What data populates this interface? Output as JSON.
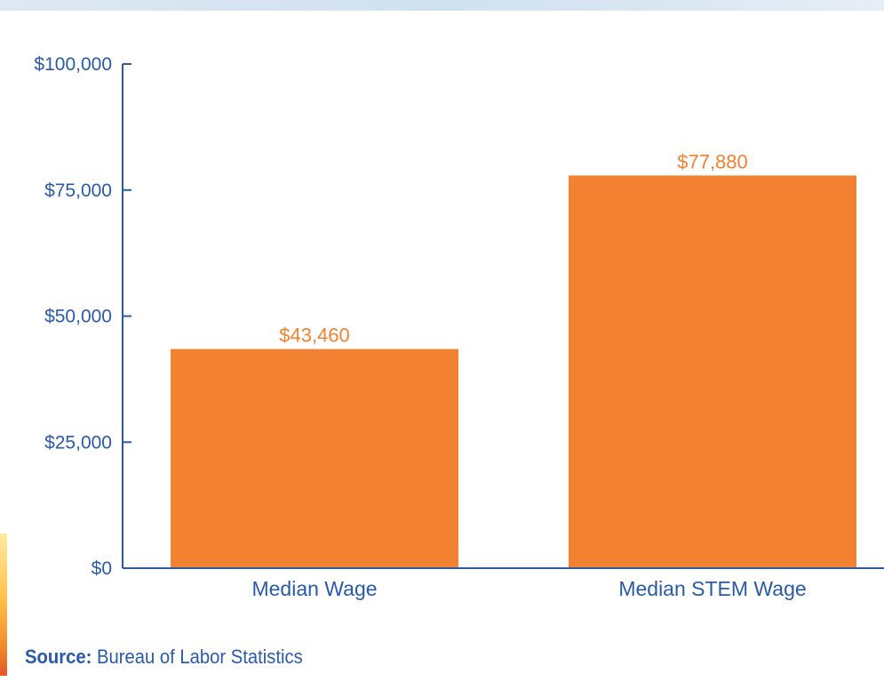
{
  "chart_data": {
    "type": "bar",
    "categories": [
      "Median Wage",
      "Median STEM Wage"
    ],
    "values": [
      43460,
      77880
    ],
    "data_labels": [
      "$43,460",
      "$77,880"
    ],
    "title": "",
    "xlabel": "",
    "ylabel": "",
    "ylim": [
      0,
      100000
    ],
    "yticks": [
      0,
      25000,
      50000,
      75000,
      100000
    ],
    "ytick_labels": [
      "$0",
      "$25,000",
      "$50,000",
      "$75,000",
      "$100,000"
    ],
    "grid": false,
    "legend": "none"
  },
  "colors": {
    "bar": "#f28232",
    "data_label": "#f28232",
    "axis": "#2a5aa8",
    "tick_text": "#2a5aa8",
    "category_text": "#2a5aa8"
  },
  "source": {
    "label": "Source:",
    "text": "Bureau of Labor Statistics"
  }
}
